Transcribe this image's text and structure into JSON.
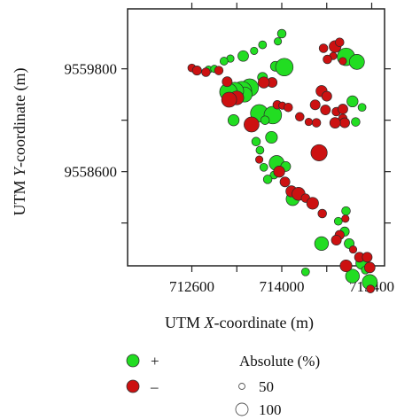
{
  "chart_data": {
    "type": "scatter",
    "xlabel_prefix": "UTM ",
    "xlabel_var": "X",
    "xlabel_suffix": "-coordinate (m)",
    "ylabel_prefix": "UTM ",
    "ylabel_var": "Y",
    "ylabel_suffix": "-coordinate (m)",
    "xlim": [
      711600,
      715600
    ],
    "ylim": [
      9557500,
      9560500
    ],
    "xticks": [
      712600,
      713300,
      714000,
      714700,
      715400
    ],
    "xtick_labels": [
      "712600",
      "",
      "714000",
      "",
      "715400"
    ],
    "yticks": [
      9558000,
      9558600,
      9559200,
      9559800
    ],
    "ytick_labels": [
      "",
      "9558600",
      "",
      "9559800"
    ],
    "colors": {
      "positive": "#22dd22",
      "negative": "#cc1111"
    },
    "series": [
      {
        "name": "+",
        "color": "#22dd22",
        "points": [
          [
            714000,
            9560210,
            8
          ],
          [
            713940,
            9560120,
            6
          ],
          [
            713700,
            9560080,
            7
          ],
          [
            713570,
            9560010,
            6
          ],
          [
            713400,
            9559950,
            11
          ],
          [
            713200,
            9559920,
            6
          ],
          [
            713100,
            9559890,
            7
          ],
          [
            713900,
            9559830,
            10
          ],
          [
            714040,
            9559820,
            22
          ],
          [
            712860,
            9559790,
            6
          ],
          [
            712950,
            9559800,
            6
          ],
          [
            715000,
            9559940,
            22
          ],
          [
            715170,
            9559880,
            18
          ],
          [
            713700,
            9559700,
            10
          ],
          [
            713500,
            9559580,
            22
          ],
          [
            713380,
            9559540,
            25
          ],
          [
            713420,
            9559500,
            18
          ],
          [
            713270,
            9559540,
            22
          ],
          [
            713170,
            9559530,
            22
          ],
          [
            715100,
            9559420,
            12
          ],
          [
            715250,
            9559350,
            7
          ],
          [
            713650,
            9559280,
            22
          ],
          [
            713860,
            9559260,
            22
          ],
          [
            713250,
            9559200,
            12
          ],
          [
            713740,
            9559200,
            8
          ],
          [
            715150,
            9559180,
            8
          ],
          [
            713840,
            9559000,
            13
          ],
          [
            713600,
            9558950,
            8
          ],
          [
            713660,
            9558850,
            7
          ],
          [
            713920,
            9558700,
            18
          ],
          [
            713720,
            9558650,
            7
          ],
          [
            713880,
            9558560,
            7
          ],
          [
            713780,
            9558510,
            8
          ],
          [
            714060,
            9558660,
            10
          ],
          [
            714170,
            9558280,
            15
          ],
          [
            715000,
            9558140,
            8
          ],
          [
            714880,
            9558020,
            7
          ],
          [
            714980,
            9557900,
            9
          ],
          [
            715050,
            9557760,
            10
          ],
          [
            714620,
            9557760,
            16
          ],
          [
            714370,
            9557430,
            7
          ],
          [
            715250,
            9557530,
            14
          ],
          [
            715100,
            9557380,
            16
          ],
          [
            715300,
            9557450,
            7
          ],
          [
            715370,
            9557310,
            18
          ]
        ]
      },
      {
        "name": "–",
        "color": "#cc1111",
        "points": [
          [
            714650,
            9560040,
            8
          ],
          [
            714830,
            9560060,
            13
          ],
          [
            714900,
            9560110,
            8
          ],
          [
            714800,
            9559950,
            6
          ],
          [
            714710,
            9559910,
            8
          ],
          [
            714950,
            9559890,
            6
          ],
          [
            712600,
            9559810,
            7
          ],
          [
            712680,
            9559780,
            9
          ],
          [
            712820,
            9559760,
            8
          ],
          [
            713020,
            9559780,
            8
          ],
          [
            713150,
            9559650,
            10
          ],
          [
            713850,
            9559640,
            10
          ],
          [
            713720,
            9559640,
            12
          ],
          [
            713300,
            9559460,
            16
          ],
          [
            713180,
            9559440,
            18
          ],
          [
            714620,
            9559540,
            12
          ],
          [
            714700,
            9559480,
            10
          ],
          [
            714520,
            9559380,
            10
          ],
          [
            714680,
            9559320,
            10
          ],
          [
            714850,
            9559300,
            8
          ],
          [
            714950,
            9559330,
            10
          ],
          [
            714950,
            9559220,
            8
          ],
          [
            713930,
            9559380,
            8
          ],
          [
            714010,
            9559370,
            6
          ],
          [
            714100,
            9559350,
            8
          ],
          [
            714280,
            9559240,
            8
          ],
          [
            714420,
            9559180,
            6
          ],
          [
            714540,
            9559170,
            8
          ],
          [
            714980,
            9559170,
            10
          ],
          [
            714830,
            9559170,
            11
          ],
          [
            713530,
            9559150,
            18
          ],
          [
            714580,
            9558820,
            20
          ],
          [
            713650,
            9558740,
            6
          ],
          [
            713960,
            9558600,
            12
          ],
          [
            714050,
            9558480,
            10
          ],
          [
            714150,
            9558370,
            12
          ],
          [
            714260,
            9558340,
            15
          ],
          [
            714370,
            9558290,
            8
          ],
          [
            714480,
            9558230,
            13
          ],
          [
            714630,
            9558110,
            8
          ],
          [
            714990,
            9558050,
            6
          ],
          [
            714900,
            9557860,
            9
          ],
          [
            714850,
            9557800,
            10
          ],
          [
            715110,
            9557690,
            6
          ],
          [
            715210,
            9557600,
            10
          ],
          [
            715000,
            9557500,
            13
          ],
          [
            715330,
            9557600,
            10
          ],
          [
            715370,
            9557480,
            11
          ],
          [
            715380,
            9557230,
            7
          ]
        ]
      }
    ],
    "legend": {
      "position": "bottom",
      "items": [
        {
          "symbol": "+",
          "color": "#22dd22"
        },
        {
          "symbol": "–",
          "color": "#cc1111"
        }
      ],
      "size_title": "Absolute (%)",
      "size_items": [
        {
          "label": "50",
          "value": 50
        },
        {
          "label": "100",
          "value": 100
        }
      ]
    }
  }
}
